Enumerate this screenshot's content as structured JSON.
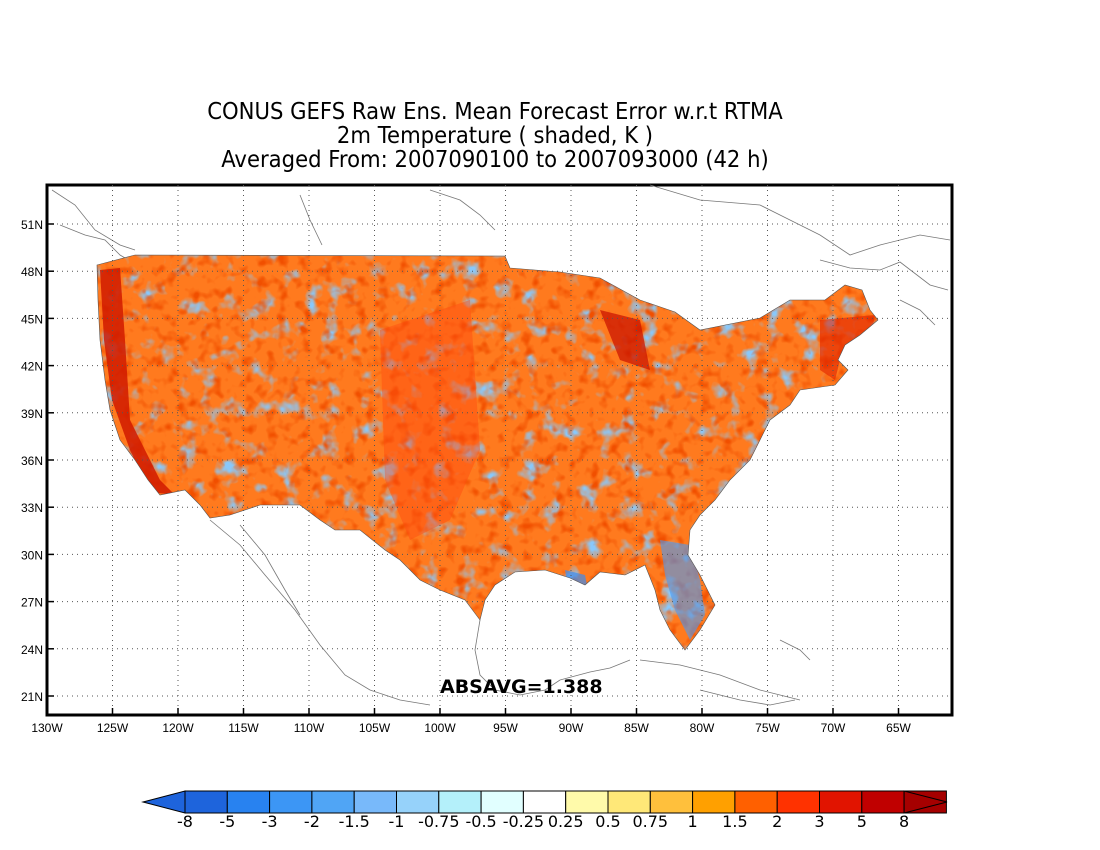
{
  "title": {
    "line1": "CONUS GEFS Raw Ens. Mean Forecast Error w.r.t RTMA",
    "line2": "2m Temperature ( shaded, K )",
    "line3": "Averaged From: 2007090100 to 2007093000 (42 h)"
  },
  "stat_label": "ABSAVG=1.388",
  "lon_labels": [
    "130W",
    "125W",
    "120W",
    "115W",
    "110W",
    "105W",
    "100W",
    "95W",
    "90W",
    "85W",
    "80W",
    "75W",
    "70W",
    "65W"
  ],
  "lat_labels": [
    "51N",
    "48N",
    "45N",
    "42N",
    "39N",
    "36N",
    "33N",
    "30N",
    "27N",
    "24N",
    "21N"
  ],
  "colorbar": {
    "colors": [
      "#1e64dc",
      "#2882f0",
      "#3c96f5",
      "#50a5f5",
      "#78b9fa",
      "#96d2fa",
      "#b4f0fa",
      "#e1ffff",
      "#ffffff",
      "#fffaaa",
      "#ffe878",
      "#ffc03c",
      "#ffa000",
      "#ff6000",
      "#ff3200",
      "#e11400",
      "#c00000",
      "#a50000"
    ],
    "tick_labels": [
      "-8",
      "-5",
      "-3",
      "-2",
      "-1.5",
      "-1",
      "-0.75",
      "-0.5",
      "-0.25",
      "0.25",
      "0.5",
      "0.75",
      "1",
      "1.5",
      "2",
      "3",
      "5",
      "8"
    ]
  }
}
